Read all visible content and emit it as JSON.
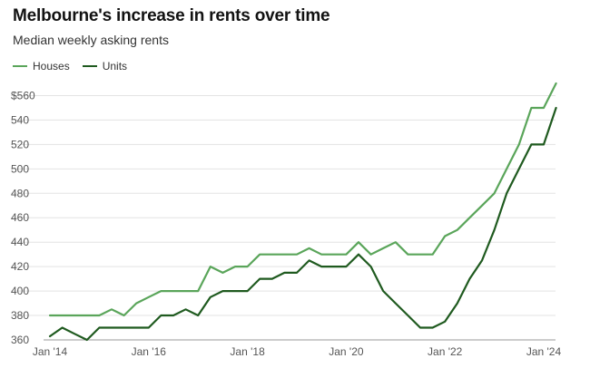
{
  "header": {
    "title": "Melbourne's increase in rents over time",
    "subtitle": "Median weekly asking rents"
  },
  "chart_data": {
    "type": "line",
    "title": "Melbourne's increase in rents over time",
    "subtitle": "Median weekly asking rents",
    "xlabel": "",
    "ylabel": "",
    "xlim": [
      "2014-01",
      "2024-01"
    ],
    "ylim": [
      360,
      570
    ],
    "grid": true,
    "legend_position": "top-left",
    "y_ticks": [
      {
        "value": 360,
        "label": "360"
      },
      {
        "value": 380,
        "label": "380"
      },
      {
        "value": 400,
        "label": "400"
      },
      {
        "value": 420,
        "label": "420"
      },
      {
        "value": 440,
        "label": "440"
      },
      {
        "value": 460,
        "label": "460"
      },
      {
        "value": 480,
        "label": "480"
      },
      {
        "value": 500,
        "label": "500"
      },
      {
        "value": 520,
        "label": "520"
      },
      {
        "value": 540,
        "label": "540"
      },
      {
        "value": 560,
        "label": "$560"
      }
    ],
    "x_ticks": [
      {
        "value": "2014-01",
        "label": "Jan '14"
      },
      {
        "value": "2016-01",
        "label": "Jan '16"
      },
      {
        "value": "2018-01",
        "label": "Jan '18"
      },
      {
        "value": "2020-01",
        "label": "Jan '20"
      },
      {
        "value": "2022-01",
        "label": "Jan '22"
      },
      {
        "value": "2024-01",
        "label": "Jan '24"
      }
    ],
    "series": [
      {
        "name": "Houses",
        "color": "#5aa55a",
        "points": [
          [
            "2014-01",
            380
          ],
          [
            "2014-04",
            380
          ],
          [
            "2014-07",
            380
          ],
          [
            "2014-10",
            380
          ],
          [
            "2015-01",
            380
          ],
          [
            "2015-04",
            385
          ],
          [
            "2015-07",
            380
          ],
          [
            "2015-10",
            390
          ],
          [
            "2016-01",
            395
          ],
          [
            "2016-04",
            400
          ],
          [
            "2016-07",
            400
          ],
          [
            "2016-10",
            400
          ],
          [
            "2017-01",
            400
          ],
          [
            "2017-04",
            420
          ],
          [
            "2017-07",
            415
          ],
          [
            "2017-10",
            420
          ],
          [
            "2018-01",
            420
          ],
          [
            "2018-04",
            430
          ],
          [
            "2018-07",
            430
          ],
          [
            "2018-10",
            430
          ],
          [
            "2019-01",
            430
          ],
          [
            "2019-04",
            435
          ],
          [
            "2019-07",
            430
          ],
          [
            "2019-10",
            430
          ],
          [
            "2020-01",
            430
          ],
          [
            "2020-04",
            440
          ],
          [
            "2020-07",
            430
          ],
          [
            "2020-10",
            435
          ],
          [
            "2021-01",
            440
          ],
          [
            "2021-04",
            430
          ],
          [
            "2021-07",
            430
          ],
          [
            "2021-10",
            430
          ],
          [
            "2022-01",
            445
          ],
          [
            "2022-04",
            450
          ],
          [
            "2022-07",
            460
          ],
          [
            "2022-10",
            470
          ],
          [
            "2023-01",
            480
          ],
          [
            "2023-04",
            500
          ],
          [
            "2023-07",
            520
          ],
          [
            "2023-10",
            550
          ],
          [
            "2024-01",
            550
          ],
          [
            "2024-04",
            570
          ]
        ]
      },
      {
        "name": "Units",
        "color": "#1f5a1f",
        "points": [
          [
            "2014-01",
            363
          ],
          [
            "2014-04",
            370
          ],
          [
            "2014-07",
            365
          ],
          [
            "2014-10",
            360
          ],
          [
            "2015-01",
            370
          ],
          [
            "2015-04",
            370
          ],
          [
            "2015-07",
            370
          ],
          [
            "2015-10",
            370
          ],
          [
            "2016-01",
            370
          ],
          [
            "2016-04",
            380
          ],
          [
            "2016-07",
            380
          ],
          [
            "2016-10",
            385
          ],
          [
            "2017-01",
            380
          ],
          [
            "2017-04",
            395
          ],
          [
            "2017-07",
            400
          ],
          [
            "2017-10",
            400
          ],
          [
            "2018-01",
            400
          ],
          [
            "2018-04",
            410
          ],
          [
            "2018-07",
            410
          ],
          [
            "2018-10",
            415
          ],
          [
            "2019-01",
            415
          ],
          [
            "2019-04",
            425
          ],
          [
            "2019-07",
            420
          ],
          [
            "2019-10",
            420
          ],
          [
            "2020-01",
            420
          ],
          [
            "2020-04",
            430
          ],
          [
            "2020-07",
            420
          ],
          [
            "2020-10",
            400
          ],
          [
            "2021-01",
            390
          ],
          [
            "2021-04",
            380
          ],
          [
            "2021-07",
            370
          ],
          [
            "2021-10",
            370
          ],
          [
            "2022-01",
            375
          ],
          [
            "2022-04",
            390
          ],
          [
            "2022-07",
            410
          ],
          [
            "2022-10",
            425
          ],
          [
            "2023-01",
            450
          ],
          [
            "2023-04",
            480
          ],
          [
            "2023-07",
            500
          ],
          [
            "2023-10",
            520
          ],
          [
            "2024-01",
            520
          ],
          [
            "2024-04",
            550
          ]
        ]
      }
    ]
  }
}
